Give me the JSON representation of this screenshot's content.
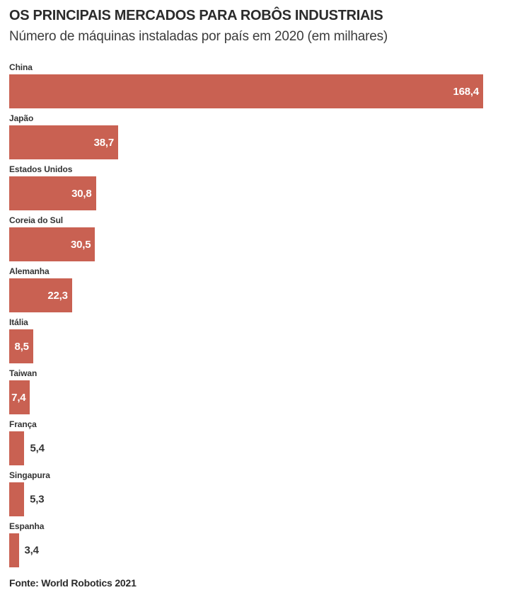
{
  "header": {
    "title": "OS PRINCIPAIS MERCADOS PARA ROBÔS INDUSTRIAIS",
    "subtitle": "Número de máquinas instaladas por país em 2020 (em milhares)"
  },
  "footer": {
    "source": "Fonte: World Robotics 2021"
  },
  "colors": {
    "bar": "#c96152",
    "value_inside": "#ffffff",
    "value_outside": "#333333"
  },
  "chart_data": {
    "type": "bar",
    "orientation": "horizontal",
    "title": "OS PRINCIPAIS MERCADOS PARA ROBÔS INDUSTRIAIS",
    "subtitle": "Número de máquinas instaladas por país em 2020 (em milhares)",
    "source": "Fonte: World Robotics 2021",
    "categories": [
      "China",
      "Japão",
      "Estados Unidos",
      "Coreia do Sul",
      "Alemanha",
      "Itália",
      "Taiwan",
      "França",
      "Singapura",
      "Espanha"
    ],
    "values": [
      168.4,
      38.7,
      30.8,
      30.5,
      22.3,
      8.5,
      7.4,
      5.4,
      5.3,
      3.4
    ],
    "value_labels": [
      "168,4",
      "38,7",
      "30,8",
      "30,5",
      "22,3",
      "8,5",
      "7,4",
      "5,4",
      "5,3",
      "3,4"
    ],
    "xlim": [
      0,
      168.4
    ],
    "grid": false,
    "legend": false
  }
}
